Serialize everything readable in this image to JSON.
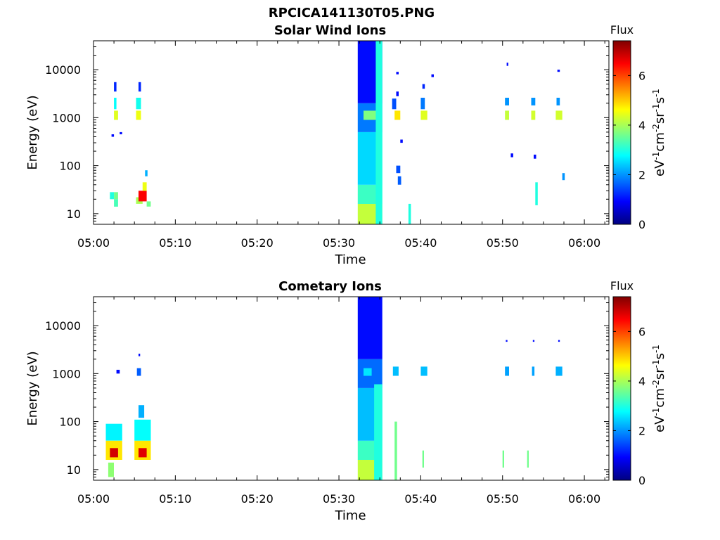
{
  "figure_title": "RPCICA141130T05.PNG",
  "colormap": "jet",
  "chart_data": [
    {
      "type": "heatmap",
      "title": "Solar Wind Ions",
      "xlabel": "Time",
      "ylabel": "Energy (eV)",
      "x_ticks": [
        "05:00",
        "05:10",
        "05:20",
        "05:30",
        "05:40",
        "05:50",
        "06:00"
      ],
      "xlim": [
        "05:00",
        "06:03"
      ],
      "y_scale": "log",
      "y_ticks": [
        "10",
        "100",
        "1000",
        "10000"
      ],
      "ylim": [
        6,
        40000
      ],
      "colorbar": {
        "title": "Flux",
        "label": "eV-1cm-2sr-1s-1",
        "ticks": [
          "0",
          "2",
          "4",
          "6"
        ],
        "range": [
          0,
          7.4
        ]
      },
      "cells": [
        [
          "05:02.0",
          "05:02.5",
          20,
          28,
          3.0
        ],
        [
          "05:02.5",
          "05:03.0",
          20,
          28,
          3.6
        ],
        [
          "05:02.5",
          "05:03.0",
          14,
          20,
          3.3
        ],
        [
          "05:02.5",
          "05:02.8",
          1500,
          2600,
          2.8
        ],
        [
          "05:02.5",
          "05:03.0",
          900,
          1400,
          4.4
        ],
        [
          "05:02.5",
          "05:02.8",
          3500,
          5500,
          1.2
        ],
        [
          "05:02.2",
          "05:02.5",
          400,
          450,
          1.0
        ],
        [
          "05:03.2",
          "05:03.5",
          450,
          500,
          1.0
        ],
        [
          "05:05.2",
          "05:05.8",
          1500,
          2600,
          2.9
        ],
        [
          "05:05.2",
          "05:05.8",
          900,
          1400,
          4.5
        ],
        [
          "05:05.5",
          "05:05.8",
          3500,
          5500,
          1.2
        ],
        [
          "05:05.2",
          "05:06.0",
          16,
          22,
          4.0
        ],
        [
          "05:05.5",
          "05:06.5",
          18,
          30,
          6.5
        ],
        [
          "05:06.0",
          "05:06.5",
          30,
          45,
          4.5
        ],
        [
          "05:06.5",
          "05:07.0",
          14,
          18,
          3.6
        ],
        [
          "05:06.3",
          "05:06.6",
          60,
          80,
          2.2
        ],
        [
          "05:32.3",
          "05:35.3",
          6,
          16,
          4.2
        ],
        [
          "05:32.3",
          "05:35.3",
          16,
          40,
          3.2
        ],
        [
          "05:32.3",
          "05:35.3",
          40,
          500,
          2.5
        ],
        [
          "05:32.3",
          "05:35.3",
          500,
          2000,
          1.8
        ],
        [
          "05:32.3",
          "05:35.3",
          2000,
          40000,
          1.0
        ],
        [
          "05:33.0",
          "05:34.5",
          900,
          1400,
          3.7
        ],
        [
          "05:34.5",
          "05:35.3",
          6,
          40000,
          3.0
        ],
        [
          "05:36.8",
          "05:37.5",
          900,
          1400,
          4.8
        ],
        [
          "05:36.5",
          "05:37.0",
          1500,
          2500,
          1.5
        ],
        [
          "05:37.0",
          "05:37.3",
          2800,
          3500,
          1.0
        ],
        [
          "05:37.0",
          "05:37.3",
          8000,
          9000,
          1.0
        ],
        [
          "05:37.5",
          "05:37.8",
          300,
          350,
          1.0
        ],
        [
          "05:37.0",
          "05:37.5",
          70,
          100,
          1.5
        ],
        [
          "05:37.2",
          "05:37.6",
          40,
          60,
          1.6
        ],
        [
          "05:38.5",
          "05:38.8",
          6,
          16,
          3.0
        ],
        [
          "05:40.0",
          "05:40.8",
          900,
          1400,
          4.4
        ],
        [
          "05:40.0",
          "05:40.5",
          1500,
          2600,
          1.8
        ],
        [
          "05:40.2",
          "05:40.5",
          4000,
          5000,
          1.2
        ],
        [
          "05:41.3",
          "05:41.6",
          7000,
          8000,
          1.0
        ],
        [
          "05:50.3",
          "05:50.8",
          900,
          1400,
          4.2
        ],
        [
          "05:50.3",
          "05:50.8",
          1800,
          2600,
          2.0
        ],
        [
          "05:50.5",
          "05:50.7",
          12000,
          14000,
          1.0
        ],
        [
          "05:51.0",
          "05:51.3",
          150,
          180,
          1.0
        ],
        [
          "05:53.5",
          "05:54.0",
          900,
          1400,
          4.3
        ],
        [
          "05:53.5",
          "05:54.0",
          1800,
          2600,
          2.0
        ],
        [
          "05:54.0",
          "05:54.3",
          15,
          45,
          3.0
        ],
        [
          "05:53.8",
          "05:54.1",
          140,
          170,
          1.0
        ],
        [
          "05:56.5",
          "05:57.3",
          900,
          1400,
          4.3
        ],
        [
          "05:56.6",
          "05:57.0",
          1800,
          2600,
          2.0
        ],
        [
          "05:56.7",
          "05:57.0",
          9000,
          10000,
          1.0
        ],
        [
          "05:57.3",
          "05:57.6",
          50,
          70,
          2.0
        ]
      ]
    },
    {
      "type": "heatmap",
      "title": "Cometary Ions",
      "xlabel": "Time",
      "ylabel": "Energy (eV)",
      "x_ticks": [
        "05:00",
        "05:10",
        "05:20",
        "05:30",
        "05:40",
        "05:50",
        "06:00"
      ],
      "xlim": [
        "05:00",
        "06:03"
      ],
      "y_scale": "log",
      "y_ticks": [
        "10",
        "100",
        "1000",
        "10000"
      ],
      "ylim": [
        6,
        40000
      ],
      "colorbar": {
        "title": "Flux",
        "label": "eV-1cm-2sr-1s-1",
        "ticks": [
          "0",
          "2",
          "4",
          "6"
        ],
        "range": [
          0,
          7.4
        ]
      },
      "cells": [
        [
          "05:01.5",
          "05:03.5",
          40,
          90,
          2.7
        ],
        [
          "05:01.5",
          "05:03.5",
          16,
          40,
          4.8
        ],
        [
          "05:02.0",
          "05:03.0",
          18,
          28,
          6.8
        ],
        [
          "05:01.8",
          "05:02.5",
          7,
          14,
          3.8
        ],
        [
          "05:02.8",
          "05:03.2",
          1000,
          1200,
          1.0
        ],
        [
          "05:05.0",
          "05:07.0",
          40,
          110,
          2.8
        ],
        [
          "05:05.0",
          "05:07.0",
          16,
          40,
          4.8
        ],
        [
          "05:05.5",
          "05:06.5",
          18,
          28,
          6.7
        ],
        [
          "05:05.5",
          "05:06.2",
          120,
          220,
          2.2
        ],
        [
          "05:05.3",
          "05:05.8",
          900,
          1300,
          1.6
        ],
        [
          "05:05.5",
          "05:05.7",
          2300,
          2600,
          1.0
        ],
        [
          "05:32.3",
          "05:35.3",
          6,
          16,
          4.2
        ],
        [
          "05:32.3",
          "05:35.3",
          16,
          40,
          3.2
        ],
        [
          "05:32.3",
          "05:35.3",
          40,
          500,
          2.3
        ],
        [
          "05:32.3",
          "05:35.3",
          500,
          2000,
          1.7
        ],
        [
          "05:32.3",
          "05:35.3",
          2000,
          40000,
          1.0
        ],
        [
          "05:33.0",
          "05:34.0",
          900,
          1300,
          2.6
        ],
        [
          "05:34.3",
          "05:35.3",
          6,
          600,
          3.0
        ],
        [
          "05:36.6",
          "05:37.3",
          900,
          1400,
          2.3
        ],
        [
          "05:36.8",
          "05:37.1",
          6,
          100,
          3.6
        ],
        [
          "05:40.0",
          "05:40.8",
          900,
          1400,
          2.3
        ],
        [
          "05:40.2",
          "05:40.4",
          11,
          25,
          3.6
        ],
        [
          "05:50.3",
          "05:50.8",
          900,
          1400,
          2.1
        ],
        [
          "05:50.4",
          "05:50.6",
          4600,
          5000,
          1.0
        ],
        [
          "05:50.0",
          "05:50.2",
          11,
          25,
          3.6
        ],
        [
          "05:53.6",
          "05:53.9",
          900,
          1400,
          2.1
        ],
        [
          "05:53.7",
          "05:53.9",
          4600,
          5000,
          1.0
        ],
        [
          "05:53.0",
          "05:53.2",
          11,
          25,
          3.6
        ],
        [
          "05:56.5",
          "05:57.3",
          900,
          1400,
          2.2
        ],
        [
          "05:56.8",
          "05:57.0",
          4600,
          5000,
          1.0
        ]
      ]
    }
  ]
}
